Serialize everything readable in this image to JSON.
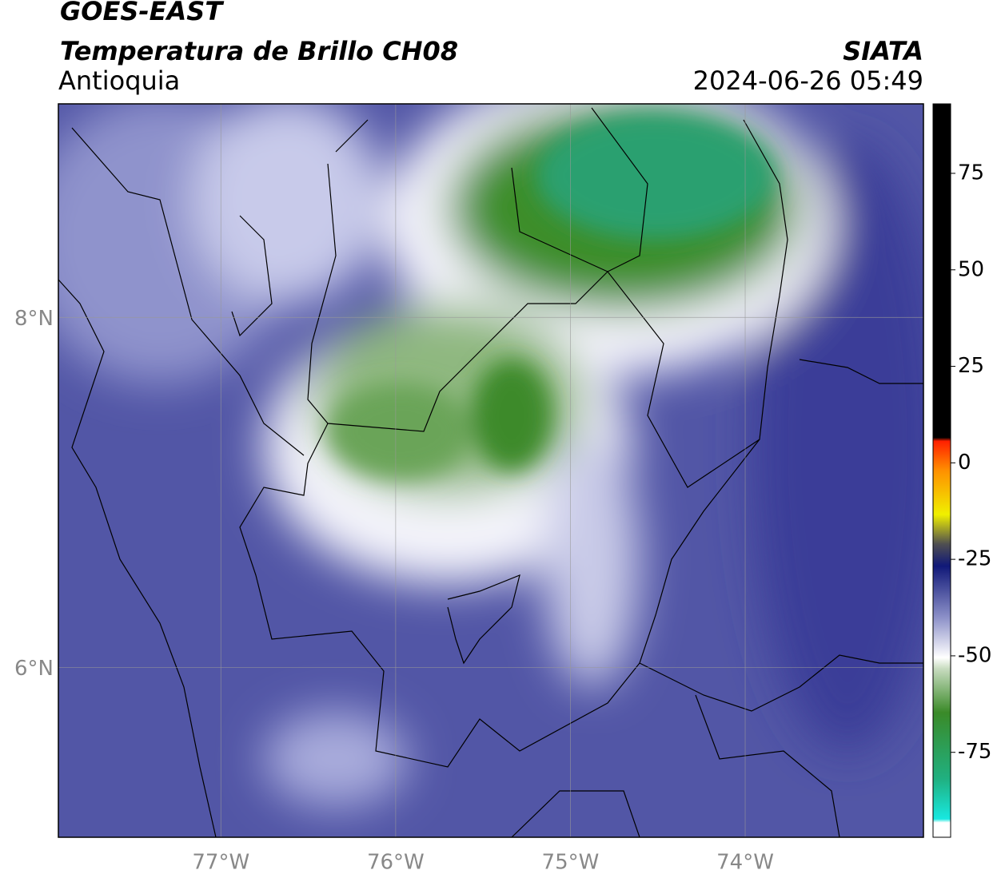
{
  "header": {
    "title": "GOES-EAST",
    "subtitle": "Temperatura de Brillo CH08",
    "source": "SIATA",
    "region": "Antioquia",
    "datetime": "2024-06-26 05:49"
  },
  "map": {
    "xlim": [
      -77.93,
      -72.98
    ],
    "ylim": [
      5.03,
      9.22
    ],
    "xticks": [
      {
        "value": -77,
        "label": "77°W"
      },
      {
        "value": -76,
        "label": "76°W"
      },
      {
        "value": -75,
        "label": "75°W"
      },
      {
        "value": -74,
        "label": "74°W"
      }
    ],
    "yticks": [
      {
        "value": 8,
        "label": "8°N"
      },
      {
        "value": 6,
        "label": "6°N"
      }
    ]
  },
  "colorbar": {
    "lim": [
      -97,
      93
    ],
    "ticks": [
      75,
      50,
      25,
      0,
      -25,
      -50,
      -75
    ]
  }
}
